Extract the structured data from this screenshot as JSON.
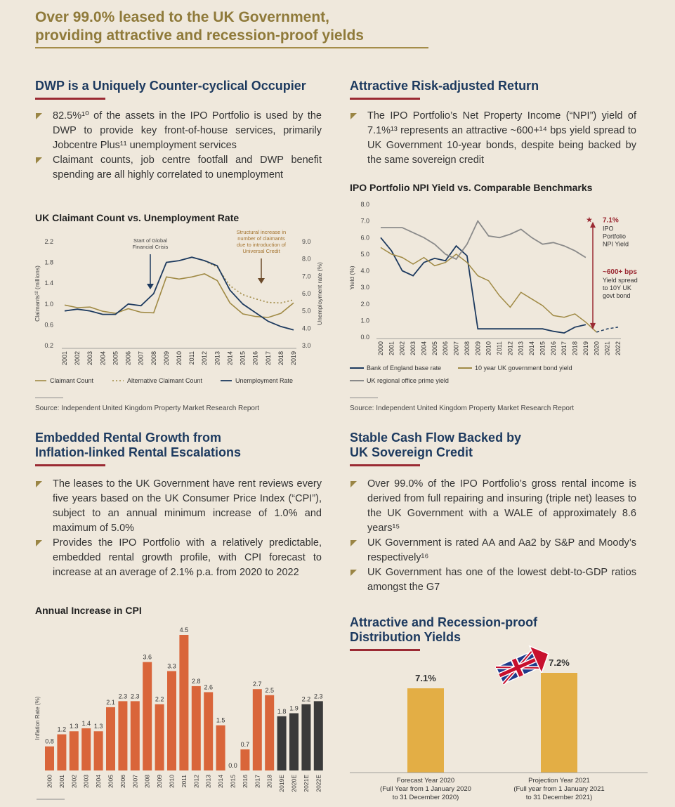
{
  "main_title": {
    "line1": "Over 99.0% leased to the UK Government,",
    "line2": "providing attractive and recession-proof yields"
  },
  "s1": {
    "title": "DWP is a Uniquely Counter-cyclical Occupier",
    "bullets": [
      "82.5%¹⁰ of the assets in the IPO Portfolio is used by the DWP to provide key front-of-house services, primarily Jobcentre Plus¹¹ unemployment services",
      "Claimant counts, job centre footfall and DWP benefit spending are all highly correlated to unemployment"
    ]
  },
  "s2": {
    "title": "Attractive Risk-adjusted Return",
    "bullets": [
      "The IPO Portfolio’s Net Property Income (“NPI”) yield of 7.1%¹³ represents an attractive ~600+¹⁴ bps yield spread to UK Government 10-year bonds, despite being backed by the same sovereign credit"
    ]
  },
  "s3": {
    "title_line1": "Embedded Rental Growth from",
    "title_line2": "Inflation-linked Rental Escalations",
    "bullets": [
      "The leases to the UK Government have rent reviews every five years based on the UK Consumer Price Index (“CPI”), subject to an annual minimum increase of 1.0% and maximum of 5.0%",
      "Provides the IPO Portfolio with a relatively predictable, embedded rental growth profile, with CPI forecast to increase at an average of 2.1% p.a. from 2020 to 2022"
    ]
  },
  "s4": {
    "title_line1": "Stable Cash Flow Backed by",
    "title_line2": "UK Sovereign Credit",
    "bullets": [
      "Over 99.0% of the IPO Portfolio’s gross rental income is derived from full repairing and insuring (triple net) leases to the UK Government with a WALE of approximately 8.6 years¹⁵",
      "UK Government is rated AA and Aa2 by S&P and Moody’s respectively¹⁶",
      "UK Government has one of the lowest debt-to-GDP ratios amongst the G7"
    ]
  },
  "s5": {
    "title_line1": "Attractive and Recession-proof",
    "title_line2": "Distribution Yields"
  },
  "sources": {
    "left": "Source: Independent United Kingdom Property Market Research Report",
    "right": "Source: Independent United Kingdom Property Market Research Report"
  },
  "colors": {
    "gold": "#a08a45",
    "navy": "#1d3a5f",
    "orange": "#d9653a",
    "dark": "#3a3a3a",
    "grey": "#8a8a8a",
    "yellow": "#e3ae45",
    "red": "#9b2a33"
  },
  "chart_data": [
    {
      "type": "line",
      "title": "UK Claimant Count vs. Unemployment Rate",
      "ylabel": "Claimants¹² (millions)",
      "y2label": "Unemployment rate (%)",
      "ylim": [
        0.2,
        2.2
      ],
      "y2lim": [
        3.0,
        9.0
      ],
      "yticks": [
        "2.2",
        "1.8",
        "1.4",
        "1.0",
        "0.6",
        "0.2"
      ],
      "y2ticks": [
        "9.0",
        "8.0",
        "7.0",
        "6.0",
        "5.0",
        "4.0",
        "3.0"
      ],
      "x": [
        "2001",
        "2002",
        "2003",
        "2004",
        "2005",
        "2006",
        "2007",
        "2008",
        "2009",
        "2010",
        "2011",
        "2012",
        "2013",
        "2014",
        "2015",
        "2016",
        "2017",
        "2018",
        "2019"
      ],
      "series": [
        {
          "name": "Claimant Count",
          "axis": "left",
          "values": [
            0.98,
            0.93,
            0.94,
            0.86,
            0.82,
            0.91,
            0.84,
            0.83,
            1.52,
            1.48,
            1.52,
            1.58,
            1.45,
            1.02,
            0.81,
            0.76,
            0.74,
            0.82,
            1.02
          ]
        },
        {
          "name": "Alternative Claimant Count",
          "axis": "left",
          "values": [
            null,
            null,
            null,
            null,
            null,
            null,
            null,
            null,
            null,
            null,
            null,
            1.83,
            1.71,
            1.35,
            1.18,
            1.1,
            1.03,
            1.02,
            1.08
          ]
        },
        {
          "name": "Unemployment Rate",
          "axis": "right",
          "values": [
            5.0,
            5.1,
            5.0,
            4.8,
            4.8,
            5.4,
            5.3,
            6.0,
            7.8,
            7.9,
            8.1,
            7.9,
            7.6,
            6.2,
            5.4,
            4.9,
            4.4,
            4.1,
            3.9
          ]
        }
      ],
      "annotations": [
        {
          "text_lines": [
            "Start of Global",
            "Financial Crisis"
          ]
        },
        {
          "text_lines": [
            "Structural increase in",
            "number of claimants",
            "due to introduction of",
            "Universal Credit"
          ]
        }
      ],
      "legend": [
        "Claimant Count",
        "Alternative Claimant Count",
        "Unemployment Rate"
      ]
    },
    {
      "type": "line",
      "title": "IPO Portfolio NPI Yield vs. Comparable Benchmarks",
      "ylabel": "Yield (%)",
      "ylim": [
        0,
        8
      ],
      "yticks": [
        "8.0",
        "7.0",
        "6.0",
        "5.0",
        "4.0",
        "3.0",
        "2.0",
        "1.0",
        "0.0"
      ],
      "x": [
        "2000",
        "2001",
        "2002",
        "2003",
        "2004",
        "2005",
        "2006",
        "2007",
        "2008",
        "2009",
        "2010",
        "2011",
        "2012",
        "2013",
        "2014",
        "2015",
        "2016",
        "2017",
        "2018",
        "2019",
        "2020",
        "2021",
        "2022"
      ],
      "series": [
        {
          "name": "Bank of England base rate",
          "values": [
            6.0,
            5.2,
            4.0,
            3.7,
            4.5,
            4.75,
            4.6,
            5.5,
            4.9,
            0.5,
            0.5,
            0.5,
            0.5,
            0.5,
            0.5,
            0.5,
            0.35,
            0.25,
            0.6,
            0.75,
            null,
            null,
            null
          ]
        },
        {
          "name": "10 year UK government bond yield",
          "values": [
            5.4,
            5.0,
            4.8,
            4.4,
            4.8,
            4.3,
            4.5,
            5.0,
            4.5,
            3.7,
            3.4,
            2.5,
            1.8,
            2.7,
            2.3,
            1.9,
            1.3,
            1.2,
            1.4,
            0.9,
            0.3,
            0.5,
            0.6
          ]
        },
        {
          "name": "UK regional office prime yield",
          "values": [
            6.6,
            6.6,
            6.6,
            6.3,
            6.0,
            5.6,
            5.0,
            4.7,
            5.6,
            7.0,
            6.1,
            6.0,
            6.2,
            6.5,
            6.0,
            5.6,
            5.7,
            5.5,
            5.2,
            4.8,
            null,
            null,
            null
          ]
        }
      ],
      "annotations": [
        {
          "value": "7.1%",
          "lines": [
            "IPO",
            "Portfolio",
            "NPI Yield"
          ]
        },
        {
          "value": "~600+ bps",
          "lines": [
            "Yield spread",
            "to 10Y UK",
            "govt bond"
          ]
        }
      ],
      "legend": [
        "Bank of England base rate",
        "10 year UK government bond yield",
        "UK regional office prime yield"
      ]
    },
    {
      "type": "bar",
      "title": "Annual Increase in CPI",
      "ylabel": "Inflation Rate (%)",
      "categories": [
        "2000",
        "2001",
        "2002",
        "2003",
        "2004",
        "2005",
        "2006",
        "2007",
        "2008",
        "2009",
        "2010",
        "2011",
        "2012",
        "2013",
        "2014",
        "2015",
        "2016",
        "2017",
        "2018",
        "2019E",
        "2020E",
        "2021E",
        "2022E"
      ],
      "values": [
        0.8,
        1.2,
        1.3,
        1.4,
        1.3,
        2.1,
        2.3,
        2.3,
        3.6,
        2.2,
        3.3,
        4.5,
        2.8,
        2.6,
        1.5,
        0.0,
        0.7,
        2.7,
        2.5,
        1.8,
        1.9,
        2.2,
        2.3
      ],
      "labels": [
        "0.8",
        "1.2",
        "1.3",
        "1.4",
        "1.3",
        "2.1",
        "2.3",
        "2.3",
        "3.6",
        "2.2",
        "3.3",
        "4.5",
        "2.8",
        "2.6",
        "1.5",
        "0.0",
        "0.7",
        "2.7",
        "2.5",
        "1.8",
        "1.9",
        "2.2",
        "2.3"
      ],
      "forecast_from_index": 19,
      "ylim": [
        0,
        4.5
      ]
    },
    {
      "type": "bar",
      "categories": [
        "Forecast Year 2020",
        "Projection Year 2021"
      ],
      "category_notes": [
        [
          "(Full Year from 1 January 2020",
          "to 31 December 2020)"
        ],
        [
          "(Full year from 1 January 2021",
          "to 31 December 2021)"
        ]
      ],
      "values": [
        7.1,
        7.2
      ],
      "labels": [
        "7.1%",
        "7.2%"
      ]
    }
  ]
}
